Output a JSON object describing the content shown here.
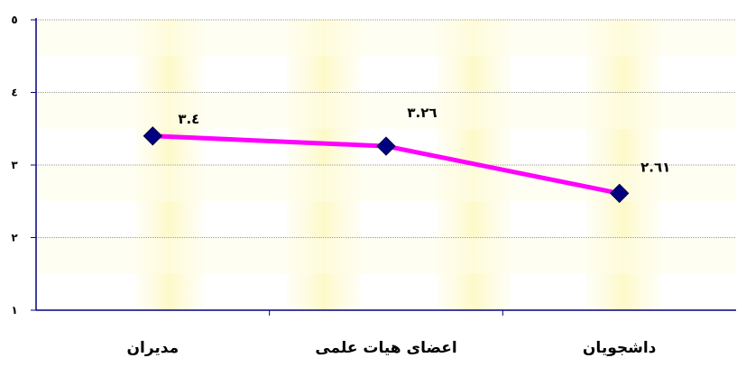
{
  "chart_data": {
    "type": "line",
    "categories": [
      "داشجویان",
      "اعضای هیات علمی",
      "مدیران"
    ],
    "series": [
      {
        "values": [
          2.61,
          3.26,
          3.4
        ]
      }
    ],
    "data_labels": [
      "۲.٦۱",
      "۳.۲٦",
      "۳.٤"
    ],
    "y_ticks": [
      {
        "value": 1,
        "label": "۱"
      },
      {
        "value": 2,
        "label": "۲"
      },
      {
        "value": 3,
        "label": "۳"
      },
      {
        "value": 4,
        "label": "٤"
      },
      {
        "value": 5,
        "label": "٥"
      }
    ],
    "ylim": [
      1,
      5
    ],
    "grid": true,
    "colors": {
      "line": "#ff00ff",
      "marker": "#000080",
      "axis": "#000080",
      "grid": "#9a9a9a",
      "band_light": "#fffde8",
      "band_dark": "#fdfbd0"
    }
  }
}
